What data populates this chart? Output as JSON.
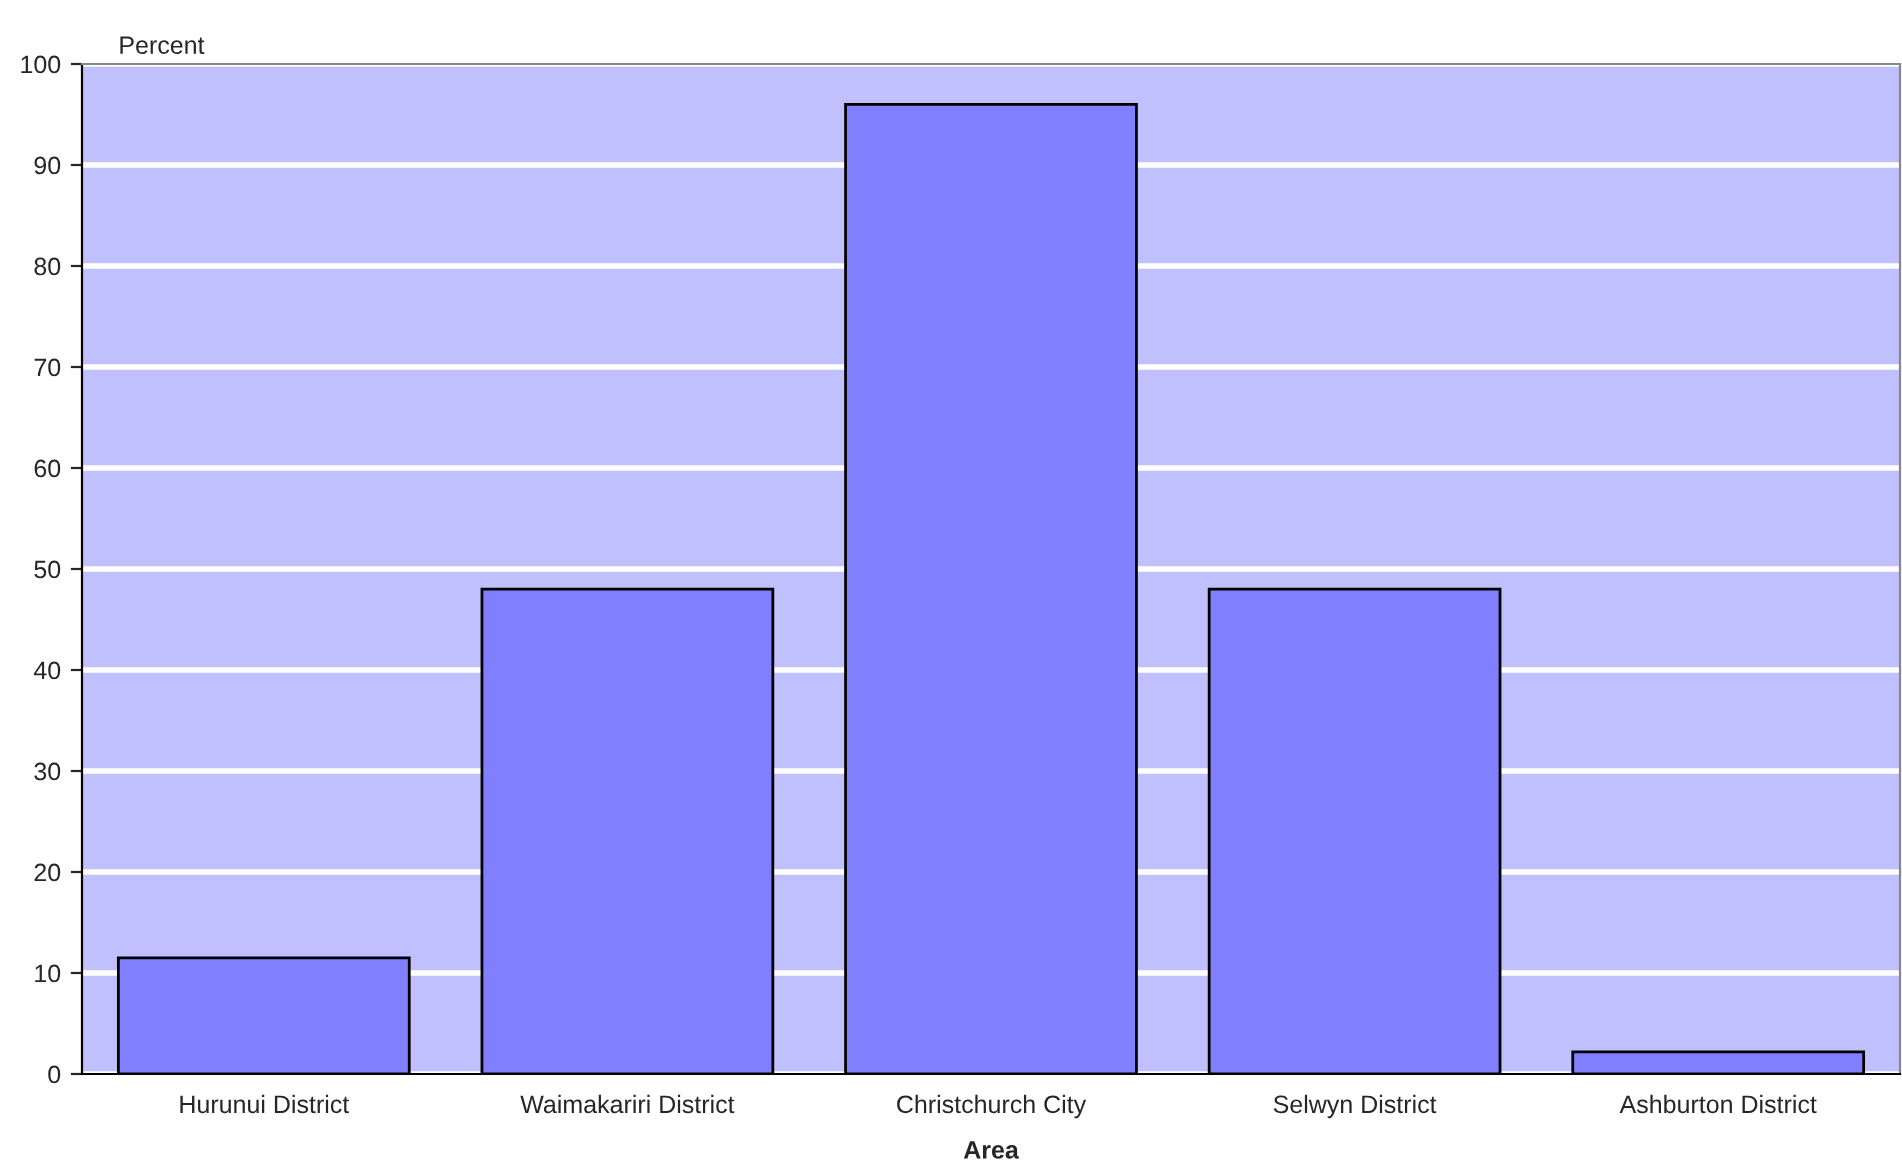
{
  "chart_data": {
    "type": "bar",
    "ylabel": "Percent",
    "xlabel": "Area",
    "categories": [
      "Hurunui District",
      "Waimakariri District",
      "Christchurch City",
      "Selwyn District",
      "Ashburton District"
    ],
    "values": [
      11.5,
      48,
      96,
      48,
      2.2
    ],
    "color": "#8080ff",
    "ylim": [
      0,
      100
    ],
    "yticks": [
      0,
      10,
      20,
      30,
      40,
      50,
      60,
      70,
      80,
      90,
      100
    ],
    "grid": "y"
  }
}
